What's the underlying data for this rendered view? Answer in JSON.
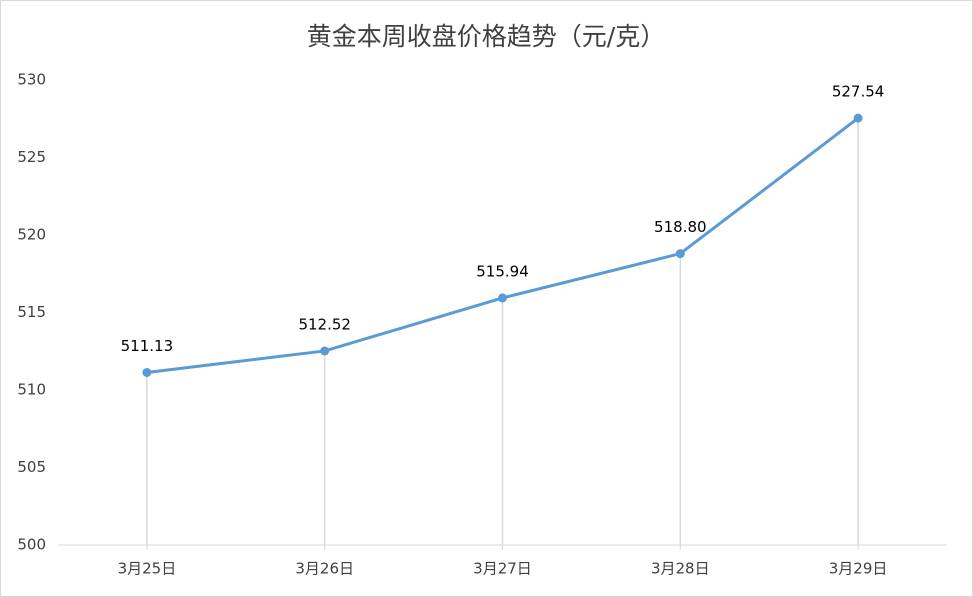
{
  "chart_data": {
    "type": "line",
    "title": "黄金本周收盘价格趋势（元/克）",
    "categories": [
      "3月25日",
      "3月26日",
      "3月27日",
      "3月28日",
      "3月29日"
    ],
    "values": [
      511.13,
      512.52,
      515.94,
      518.8,
      527.54
    ],
    "value_labels": [
      "511.13",
      "512.52",
      "515.94",
      "518.80",
      "527.54"
    ],
    "color": "#5b9bd5",
    "ylim": [
      500,
      530
    ],
    "yticks": [
      500,
      505,
      510,
      515,
      520,
      525,
      530
    ],
    "drop_lines": true
  }
}
